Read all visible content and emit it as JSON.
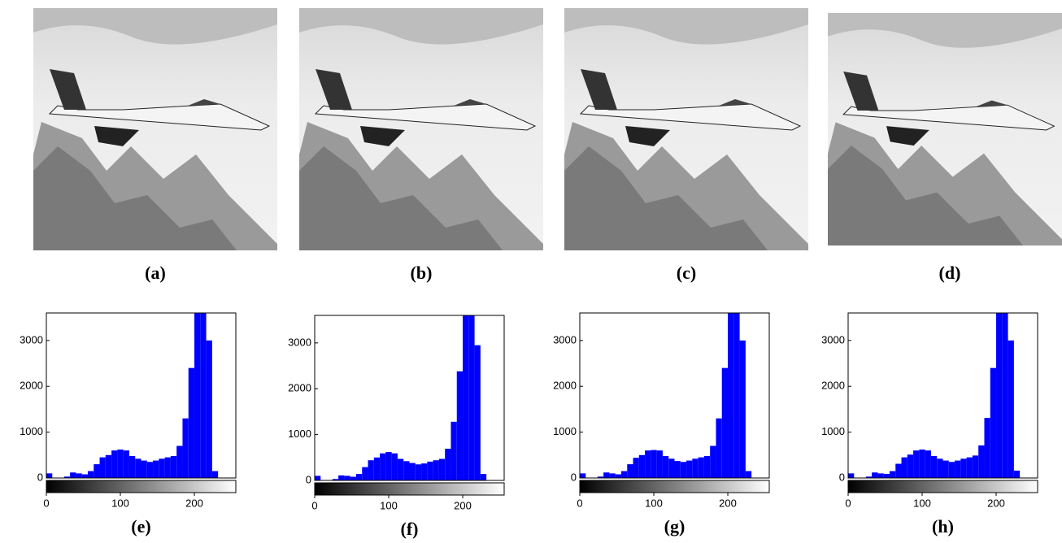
{
  "images": [
    {
      "label": "(a)"
    },
    {
      "label": "(b)"
    },
    {
      "label": "(c)"
    },
    {
      "label": "(d)"
    }
  ],
  "chart_data": [
    {
      "type": "histogram",
      "label": "(e)",
      "color": "#0000ff",
      "bins": [
        0,
        8,
        16,
        24,
        32,
        40,
        48,
        56,
        64,
        72,
        80,
        88,
        96,
        104,
        112,
        120,
        128,
        136,
        144,
        152,
        160,
        168,
        176,
        184,
        192,
        200,
        208,
        216,
        224,
        232,
        240,
        248,
        256
      ],
      "values": [
        100,
        0,
        0,
        30,
        120,
        100,
        80,
        150,
        300,
        450,
        500,
        600,
        620,
        600,
        480,
        420,
        380,
        350,
        380,
        420,
        450,
        480,
        700,
        1300,
        2400,
        3600,
        3600,
        3000,
        150,
        0,
        0,
        0
      ],
      "xlim": [
        0,
        256
      ],
      "ylim": [
        0,
        3600
      ],
      "xticks": [
        0,
        100,
        200
      ],
      "yticks": [
        0,
        1000,
        2000,
        3000
      ]
    },
    {
      "type": "histogram",
      "label": "(f)",
      "color": "#0000ff",
      "bins": [
        0,
        8,
        16,
        24,
        32,
        40,
        48,
        56,
        64,
        72,
        80,
        88,
        96,
        104,
        112,
        120,
        128,
        136,
        144,
        152,
        160,
        168,
        176,
        184,
        192,
        200,
        208,
        216,
        224,
        232,
        240,
        248,
        256
      ],
      "values": [
        100,
        0,
        0,
        30,
        110,
        100,
        80,
        140,
        290,
        440,
        500,
        590,
        620,
        590,
        470,
        420,
        380,
        350,
        370,
        410,
        440,
        470,
        690,
        1280,
        2380,
        3600,
        3600,
        2950,
        140,
        0,
        0,
        0
      ],
      "xlim": [
        0,
        256
      ],
      "ylim": [
        0,
        3600
      ],
      "xticks": [
        0,
        100,
        200
      ],
      "yticks": [
        0,
        1000,
        2000,
        3000
      ]
    },
    {
      "type": "histogram",
      "label": "(g)",
      "color": "#0000ff",
      "bins": [
        0,
        8,
        16,
        24,
        32,
        40,
        48,
        56,
        64,
        72,
        80,
        88,
        96,
        104,
        112,
        120,
        128,
        136,
        144,
        152,
        160,
        168,
        176,
        184,
        192,
        200,
        208,
        216,
        224,
        232,
        240,
        248,
        256
      ],
      "values": [
        100,
        0,
        0,
        30,
        120,
        100,
        80,
        150,
        300,
        440,
        500,
        600,
        610,
        600,
        480,
        420,
        370,
        350,
        380,
        420,
        450,
        480,
        700,
        1300,
        2400,
        3600,
        3600,
        3000,
        150,
        0,
        0,
        0
      ],
      "xlim": [
        0,
        256
      ],
      "ylim": [
        0,
        3600
      ],
      "xticks": [
        0,
        100,
        200
      ],
      "yticks": [
        0,
        1000,
        2000,
        3000
      ]
    },
    {
      "type": "histogram",
      "label": "(h)",
      "color": "#0000ff",
      "bins": [
        0,
        8,
        16,
        24,
        32,
        40,
        48,
        56,
        64,
        72,
        80,
        88,
        96,
        104,
        112,
        120,
        128,
        136,
        144,
        152,
        160,
        168,
        176,
        184,
        192,
        200,
        208,
        216,
        224,
        232,
        240,
        248,
        256
      ],
      "values": [
        100,
        0,
        0,
        30,
        120,
        100,
        90,
        150,
        310,
        450,
        510,
        600,
        620,
        600,
        480,
        420,
        380,
        350,
        380,
        420,
        450,
        490,
        710,
        1310,
        2400,
        3600,
        3600,
        3000,
        160,
        0,
        0,
        0
      ],
      "xlim": [
        0,
        256
      ],
      "ylim": [
        0,
        3600
      ],
      "xticks": [
        0,
        100,
        200
      ],
      "yticks": [
        0,
        1000,
        2000,
        3000
      ]
    }
  ]
}
